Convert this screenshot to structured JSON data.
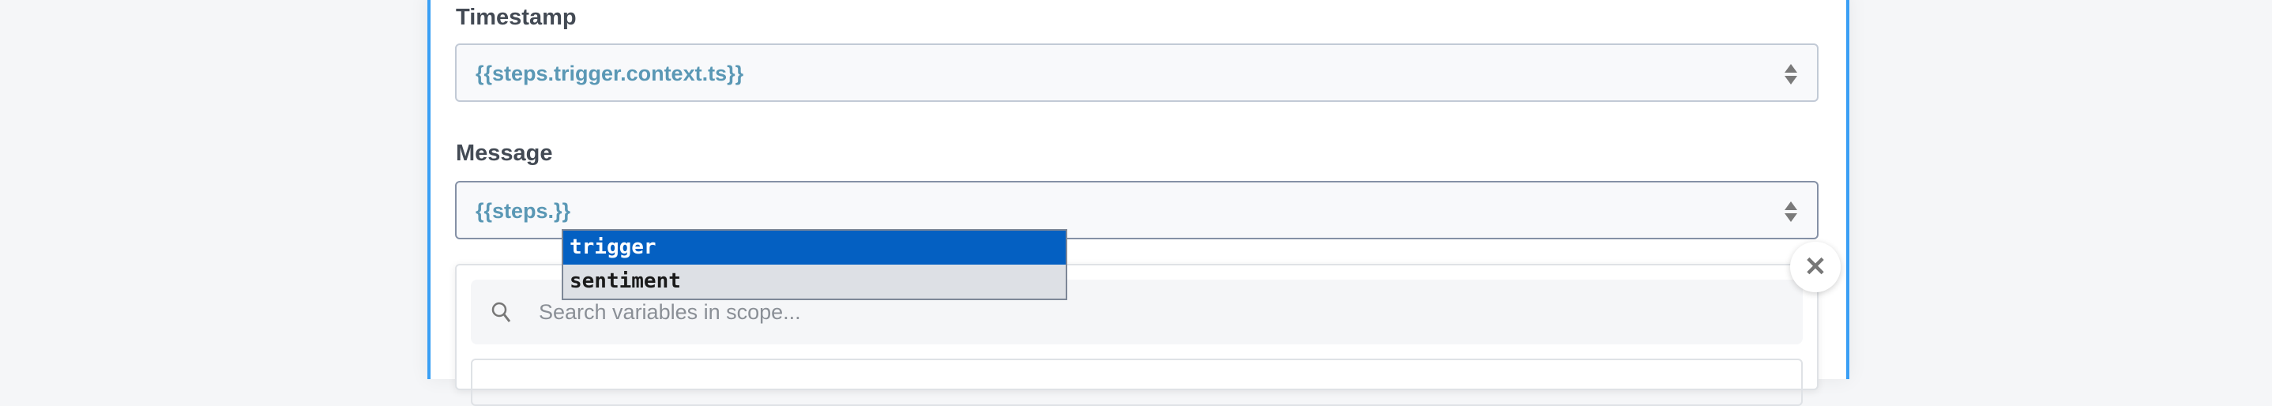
{
  "fields": [
    {
      "label": "Timestamp",
      "value": "{{steps.trigger.context.ts}}"
    },
    {
      "label": "Message",
      "value": "{{steps.}}"
    }
  ],
  "autocomplete": {
    "items": [
      "trigger",
      "sentiment"
    ],
    "selected": "trigger"
  },
  "variable_picker": {
    "search_placeholder": "Search variables in scope...",
    "search_icon": "search-icon",
    "close_icon": "close-icon",
    "close_glyph": "✕"
  },
  "colors": {
    "accent": "#3a9ff5",
    "selection": "#0460c2",
    "value_text": "#5a98b5"
  }
}
